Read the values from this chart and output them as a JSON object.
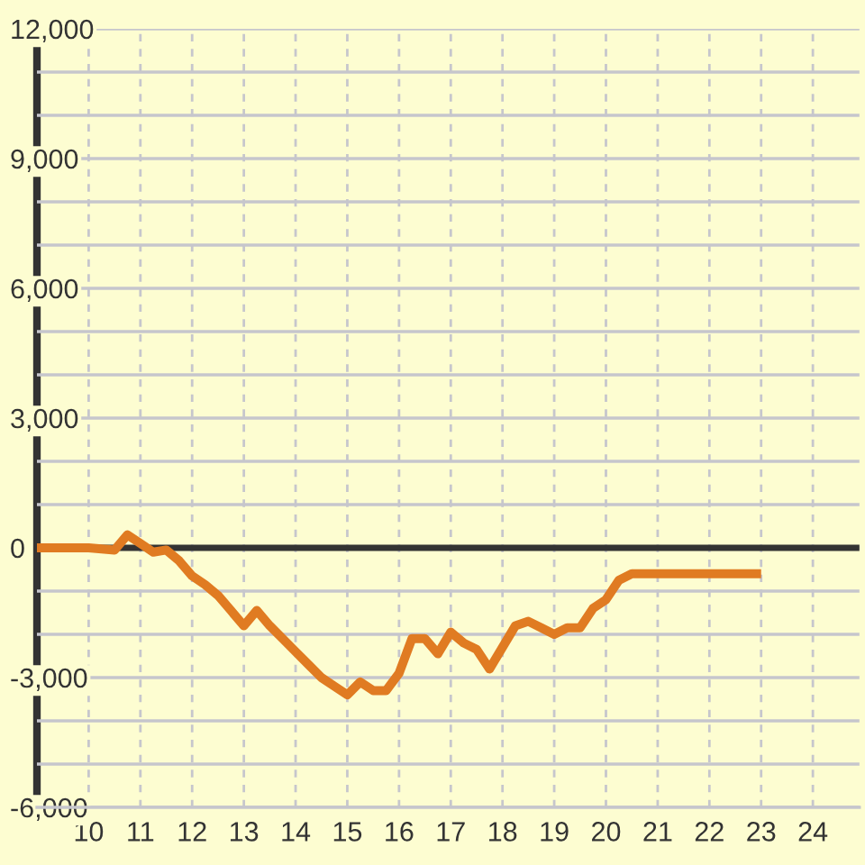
{
  "chart_data": {
    "type": "line",
    "color": "#e07b22",
    "x": [
      9,
      10,
      10.5,
      10.75,
      11,
      11.25,
      11.5,
      11.75,
      12,
      12.25,
      12.5,
      12.75,
      13,
      13.25,
      13.5,
      13.75,
      14,
      14.25,
      14.5,
      14.75,
      15,
      15.25,
      15.5,
      15.75,
      16,
      16.25,
      16.5,
      16.75,
      17,
      17.25,
      17.5,
      17.75,
      18,
      18.25,
      18.5,
      18.75,
      19,
      19.25,
      19.5,
      19.75,
      20,
      20.25,
      20.5,
      23
    ],
    "values": [
      0,
      0,
      -50,
      300,
      100,
      -100,
      -50,
      -300,
      -650,
      -850,
      -1100,
      -1450,
      -1800,
      -1450,
      -1800,
      -2100,
      -2400,
      -2700,
      -3000,
      -3200,
      -3400,
      -3100,
      -3300,
      -3300,
      -2900,
      -2100,
      -2100,
      -2450,
      -1950,
      -2200,
      -2350,
      -2800,
      -2300,
      -1800,
      -1700,
      -1850,
      -2000,
      -1850,
      -1850,
      -1400,
      -1200,
      -750,
      -600,
      -600
    ],
    "xlim": [
      9,
      24.9
    ],
    "xticks": [
      10,
      11,
      12,
      13,
      14,
      15,
      16,
      17,
      18,
      19,
      20,
      21,
      22,
      23,
      24
    ],
    "ylim": [
      -6000,
      12000
    ],
    "yticks": [
      {
        "value": -6000,
        "label": "-6,000"
      },
      {
        "value": -5000,
        "label": null
      },
      {
        "value": -4000,
        "label": null
      },
      {
        "value": -3000,
        "label": "-3,000"
      },
      {
        "value": -2000,
        "label": null
      },
      {
        "value": -1000,
        "label": null
      },
      0,
      {
        "value": 1000,
        "label": null
      },
      {
        "value": 2000,
        "label": null
      },
      {
        "value": 3000,
        "label": "3,000"
      },
      {
        "value": 4000,
        "label": null
      },
      {
        "value": 5000,
        "label": null
      },
      {
        "value": 6000,
        "label": "6,000"
      },
      {
        "value": 7000,
        "label": null
      },
      {
        "value": 8000,
        "label": null
      },
      {
        "value": 9000,
        "label": "9,000"
      },
      {
        "value": 10000,
        "label": null
      },
      {
        "value": 11000,
        "label": null
      },
      {
        "value": 12000,
        "label": "12,000"
      }
    ],
    "grid": true,
    "ref_lines": [
      {
        "axis": "y",
        "value": 0,
        "color": "#333333"
      }
    ]
  }
}
